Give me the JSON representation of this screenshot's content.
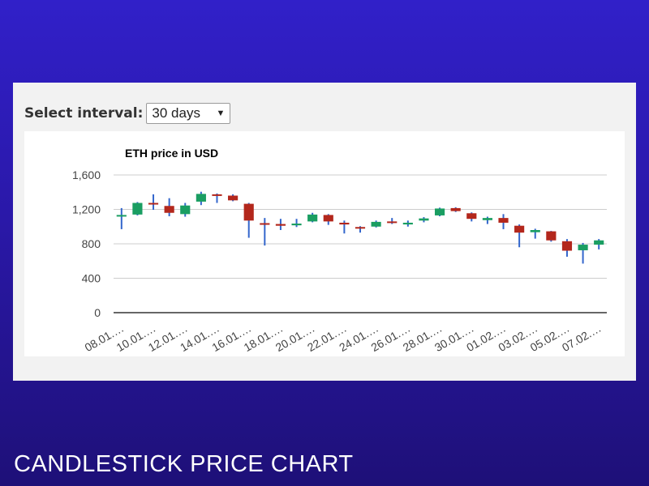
{
  "control": {
    "label": "Select interval:",
    "selected": "30 days"
  },
  "footer": {
    "title": "CANDLESTICK PRICE CHART"
  },
  "chart_data": {
    "type": "candlestick",
    "title": "ETH price in USD",
    "ylim": [
      0,
      1600
    ],
    "yticks": [
      0,
      400,
      800,
      1200,
      1600
    ],
    "ytick_labels": [
      "0",
      "400",
      "800",
      "1,200",
      "1,600"
    ],
    "xtick_labels": [
      "08.01.…",
      "10.01.…",
      "12.01.…",
      "14.01.…",
      "16.01.…",
      "18.01.…",
      "20.01.…",
      "22.01.…",
      "24.01.…",
      "26.01.…",
      "28.01.…",
      "30.01.…",
      "01.02.…",
      "03.02.…",
      "05.02.…",
      "07.02.…"
    ],
    "grid": true,
    "colors": {
      "up": "#1a9e62",
      "down": "#b3271c",
      "wick": "#3366cc",
      "grid": "#cccccc",
      "axis": "#333333"
    },
    "candles": [
      {
        "open": 1120,
        "close": 1135,
        "low": 970,
        "high": 1215
      },
      {
        "open": 1140,
        "close": 1275,
        "low": 1130,
        "high": 1285
      },
      {
        "open": 1275,
        "close": 1260,
        "low": 1195,
        "high": 1375
      },
      {
        "open": 1240,
        "close": 1160,
        "low": 1120,
        "high": 1330
      },
      {
        "open": 1145,
        "close": 1245,
        "low": 1115,
        "high": 1275
      },
      {
        "open": 1290,
        "close": 1380,
        "low": 1250,
        "high": 1405
      },
      {
        "open": 1375,
        "close": 1365,
        "low": 1275,
        "high": 1385
      },
      {
        "open": 1360,
        "close": 1305,
        "low": 1295,
        "high": 1375
      },
      {
        "open": 1265,
        "close": 1070,
        "low": 870,
        "high": 1275
      },
      {
        "open": 1040,
        "close": 1030,
        "low": 780,
        "high": 1100
      },
      {
        "open": 1030,
        "close": 1010,
        "low": 960,
        "high": 1090
      },
      {
        "open": 1015,
        "close": 1035,
        "low": 995,
        "high": 1090
      },
      {
        "open": 1060,
        "close": 1140,
        "low": 1050,
        "high": 1160
      },
      {
        "open": 1135,
        "close": 1060,
        "low": 1020,
        "high": 1145
      },
      {
        "open": 1045,
        "close": 1025,
        "low": 920,
        "high": 1070
      },
      {
        "open": 995,
        "close": 985,
        "low": 930,
        "high": 1005
      },
      {
        "open": 1000,
        "close": 1055,
        "low": 990,
        "high": 1070
      },
      {
        "open": 1060,
        "close": 1050,
        "low": 1030,
        "high": 1100
      },
      {
        "open": 1025,
        "close": 1045,
        "low": 1000,
        "high": 1070
      },
      {
        "open": 1070,
        "close": 1095,
        "low": 1050,
        "high": 1110
      },
      {
        "open": 1130,
        "close": 1210,
        "low": 1120,
        "high": 1220
      },
      {
        "open": 1215,
        "close": 1180,
        "low": 1170,
        "high": 1225
      },
      {
        "open": 1155,
        "close": 1090,
        "low": 1060,
        "high": 1165
      },
      {
        "open": 1075,
        "close": 1100,
        "low": 1030,
        "high": 1115
      },
      {
        "open": 1100,
        "close": 1045,
        "low": 970,
        "high": 1145
      },
      {
        "open": 1010,
        "close": 930,
        "low": 760,
        "high": 1025
      },
      {
        "open": 935,
        "close": 960,
        "low": 860,
        "high": 975
      },
      {
        "open": 945,
        "close": 840,
        "low": 825,
        "high": 950
      },
      {
        "open": 830,
        "close": 720,
        "low": 650,
        "high": 855
      },
      {
        "open": 725,
        "close": 790,
        "low": 570,
        "high": 810
      },
      {
        "open": 790,
        "close": 840,
        "low": 735,
        "high": 855
      }
    ]
  }
}
